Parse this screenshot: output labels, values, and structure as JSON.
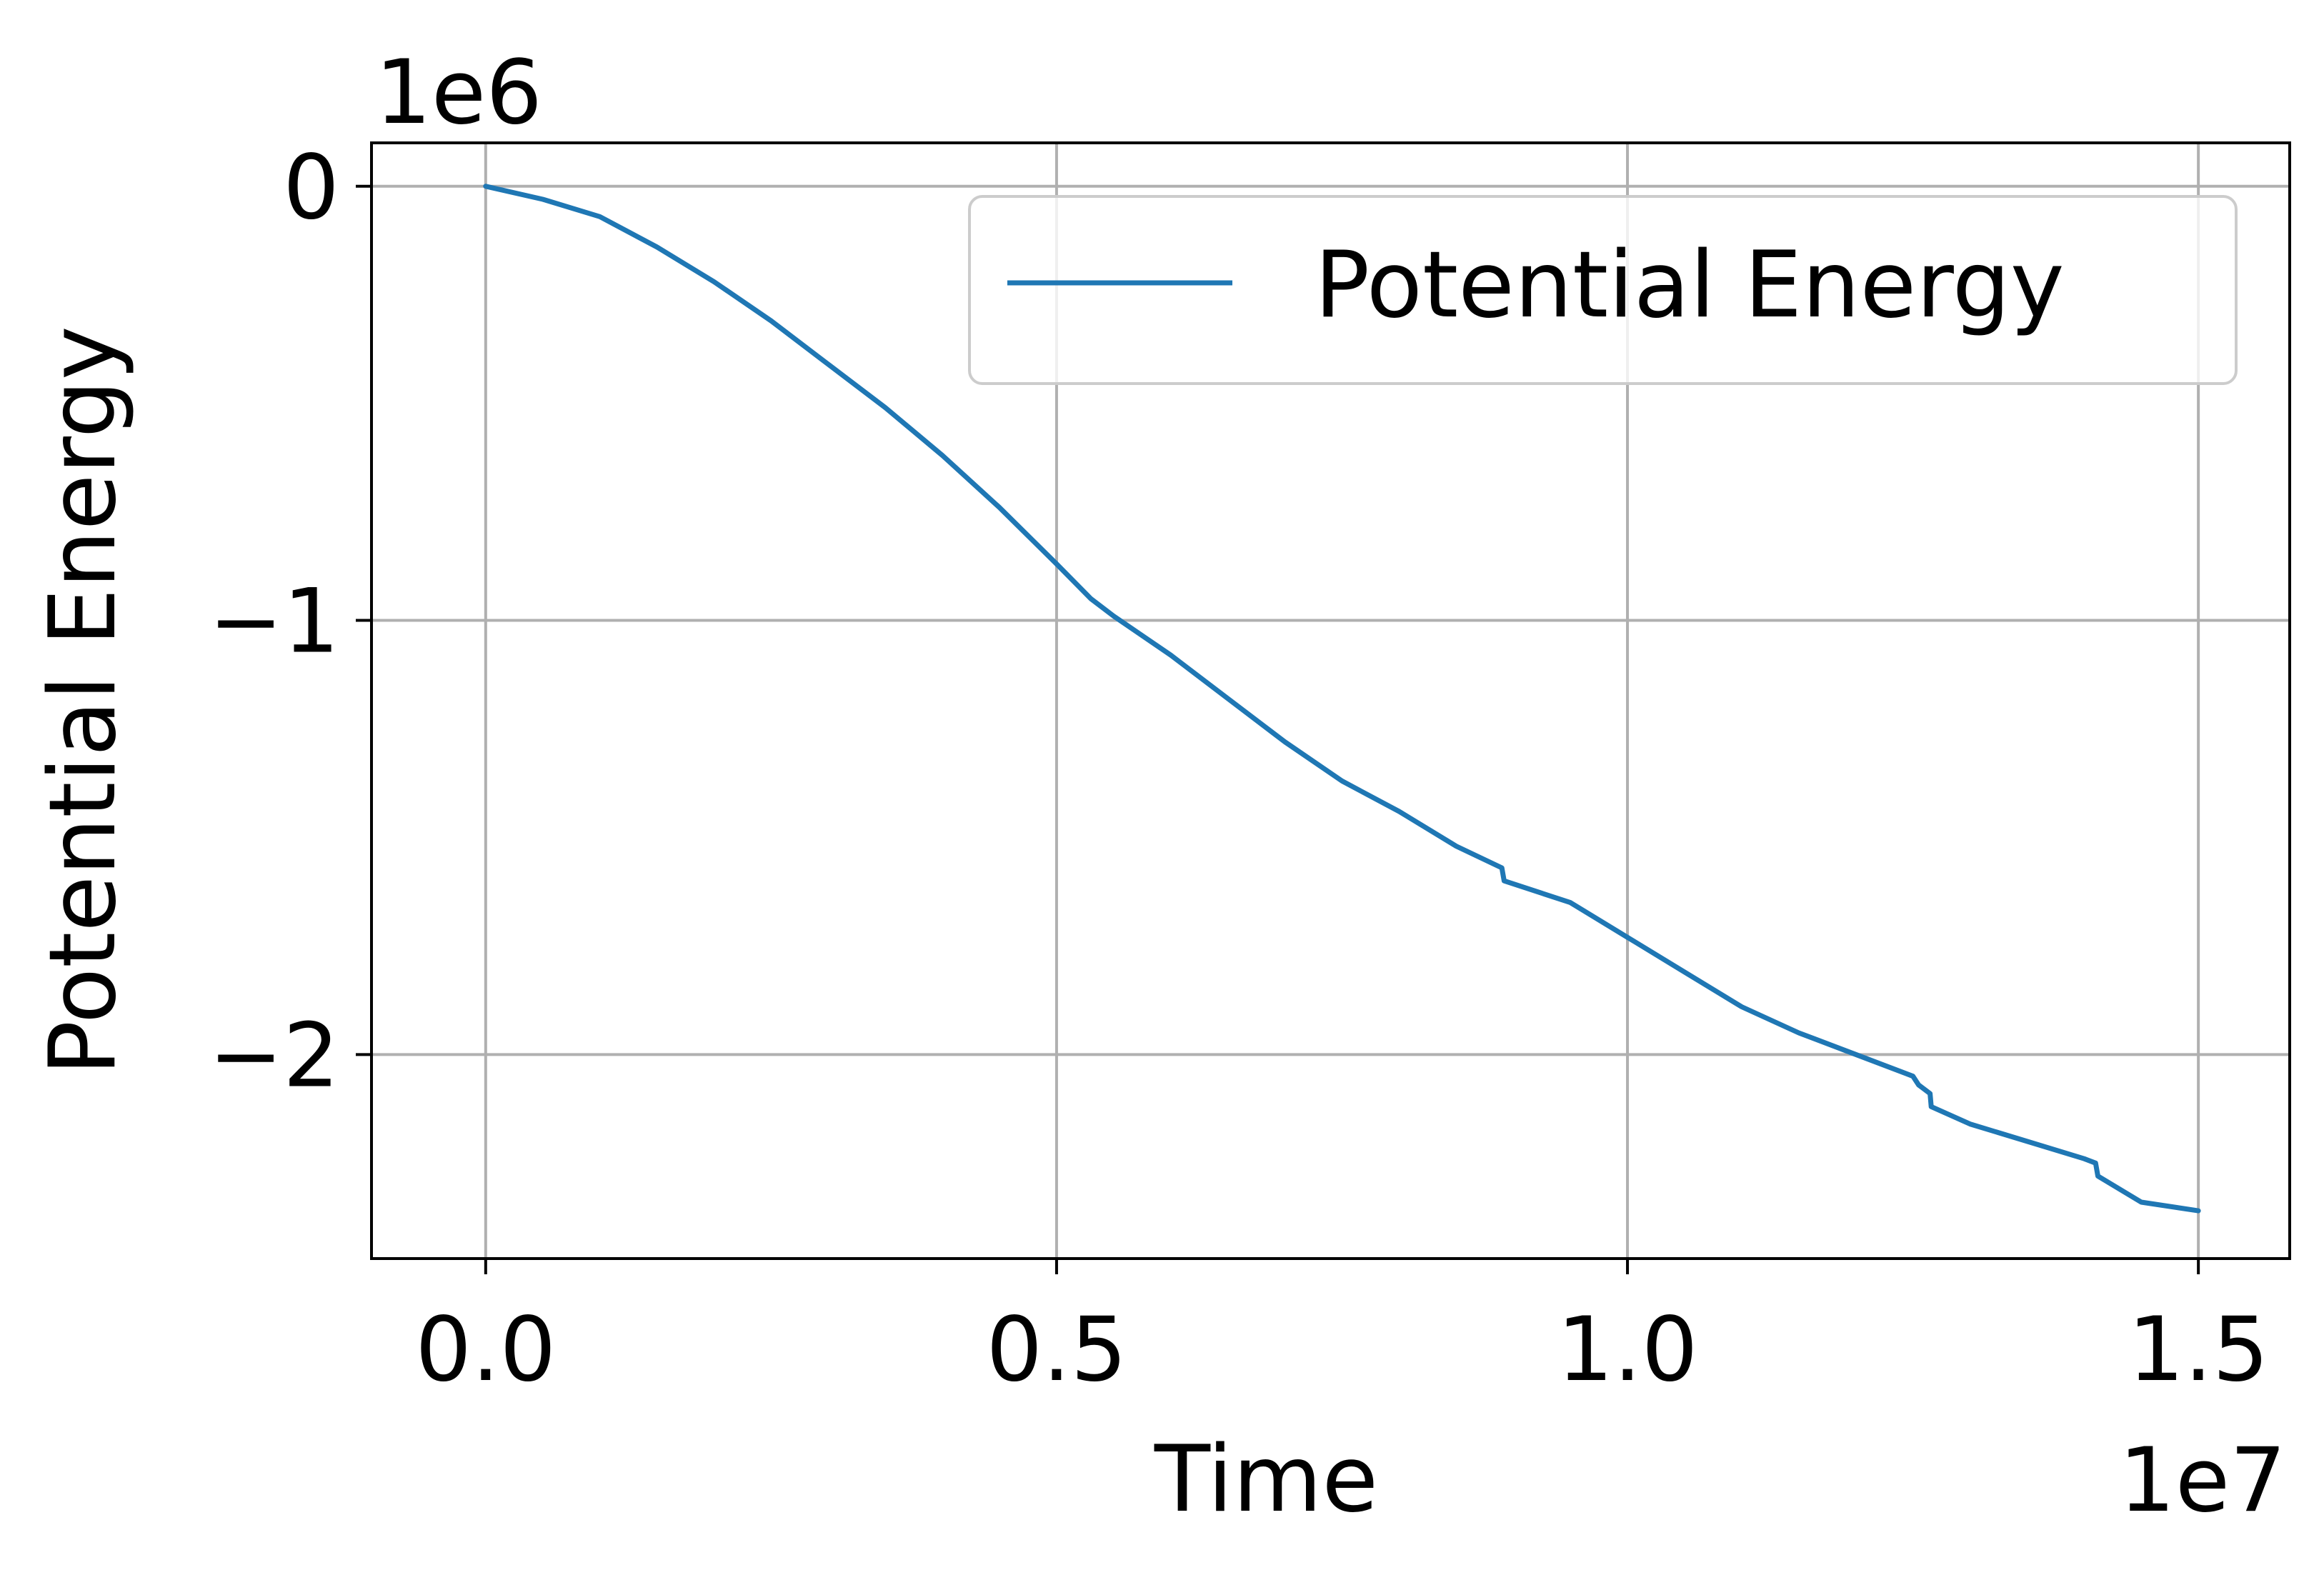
{
  "chart_data": {
    "type": "line",
    "title": "",
    "xlabel": "Time",
    "ylabel": "Potential Energy",
    "x_offset_label": "1e7",
    "y_offset_label": "1e6",
    "xlim": [
      -1.0,
      15.8
    ],
    "ylim": [
      -2.47,
      0.1
    ],
    "xticks": [
      0,
      5,
      10,
      15
    ],
    "xtick_labels": [
      "0.0",
      "0.5",
      "1.0",
      "1.5"
    ],
    "yticks": [
      0,
      -1,
      -2
    ],
    "ytick_labels": [
      "0",
      "−1",
      "−2"
    ],
    "x_units_note": "x values in units of 1e6 (axis scale 1e7)",
    "grid": true,
    "legend": {
      "position": "top-right",
      "entries": [
        "Potential Energy"
      ]
    },
    "colors": {
      "series": "#1f77b4",
      "grid": "#b0b0b0",
      "axes": "#000000"
    },
    "series": [
      {
        "name": "Potential Energy",
        "x": [
          0.0,
          0.5,
          1.0,
          1.5,
          2.0,
          2.5,
          3.0,
          3.5,
          4.0,
          4.5,
          5.0,
          5.3,
          5.5,
          6.0,
          6.5,
          7.0,
          7.5,
          8.0,
          8.5,
          8.9,
          8.92,
          9.5,
          10.0,
          10.5,
          11.0,
          11.5,
          12.0,
          12.5,
          12.55,
          12.65,
          12.66,
          13.0,
          13.5,
          14.0,
          14.1,
          14.12,
          14.5,
          15.0
        ],
        "y": [
          0.0,
          -0.03,
          -0.07,
          -0.14,
          -0.22,
          -0.31,
          -0.41,
          -0.51,
          -0.62,
          -0.74,
          -0.87,
          -0.95,
          -0.99,
          -1.08,
          -1.18,
          -1.28,
          -1.37,
          -1.44,
          -1.52,
          -1.57,
          -1.6,
          -1.65,
          -1.73,
          -1.81,
          -1.89,
          -1.95,
          -2.0,
          -2.05,
          -2.07,
          -2.09,
          -2.12,
          -2.16,
          -2.2,
          -2.24,
          -2.25,
          -2.28,
          -2.34,
          -2.36
        ]
      }
    ]
  }
}
